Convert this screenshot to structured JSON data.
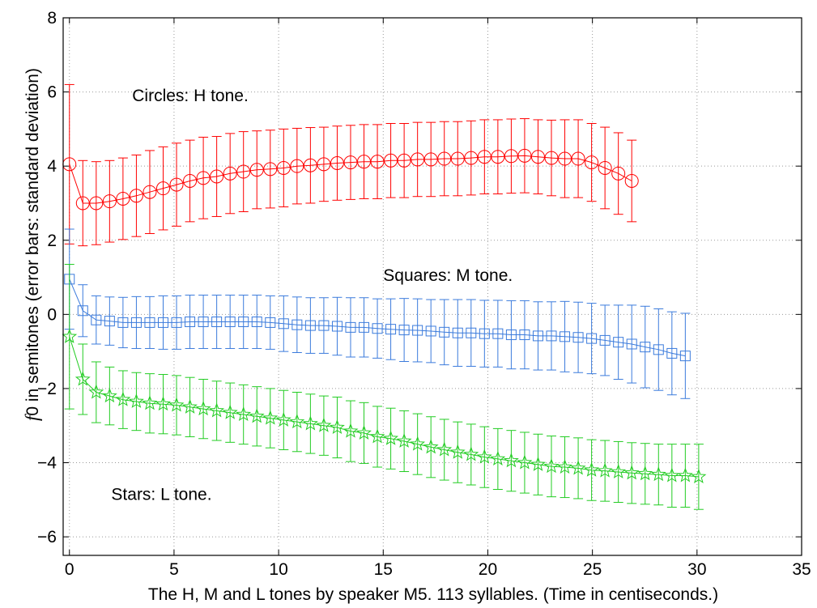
{
  "chart_data": {
    "type": "line",
    "title": "",
    "xlabel": "The H, M and L tones by speaker M5. 113 syllables. (Time in centiseconds.)",
    "ylabel_italic": "f",
    "ylabel": "0 in semitones (error bars: standard deviation)",
    "xlim": [
      -0.3,
      35
    ],
    "ylim": [
      -6.5,
      8
    ],
    "xticks": [
      0,
      5,
      10,
      15,
      20,
      25,
      30,
      35
    ],
    "yticks": [
      -6,
      -4,
      -2,
      0,
      2,
      4,
      6,
      8
    ],
    "grid": true,
    "annotations": [
      {
        "text": "Circles: H tone.",
        "x": 3.0,
        "y": 5.75
      },
      {
        "text": "Squares: M tone.",
        "x": 15.0,
        "y": 0.9
      },
      {
        "text": "Stars: L tone.",
        "x": 2.0,
        "y": -5.0
      }
    ],
    "series": [
      {
        "marker": "circle",
        "color": "#ff0000",
        "x": [
          0,
          0.64,
          1.28,
          1.92,
          2.56,
          3.2,
          3.84,
          4.48,
          5.12,
          5.76,
          6.4,
          7.04,
          7.68,
          8.32,
          8.96,
          9.6,
          10.24,
          10.88,
          11.52,
          12.16,
          12.8,
          13.44,
          14.08,
          14.72,
          15.36,
          16.0,
          16.64,
          17.28,
          17.92,
          18.56,
          19.2,
          19.84,
          20.48,
          21.12,
          21.76,
          22.4,
          23.04,
          23.68,
          24.32,
          24.96,
          25.6,
          26.24,
          26.88
        ],
        "y": [
          4.05,
          3.0,
          3.0,
          3.05,
          3.12,
          3.2,
          3.3,
          3.4,
          3.5,
          3.6,
          3.68,
          3.72,
          3.8,
          3.85,
          3.9,
          3.92,
          3.95,
          4.0,
          4.02,
          4.05,
          4.08,
          4.1,
          4.12,
          4.12,
          4.15,
          4.15,
          4.18,
          4.18,
          4.2,
          4.2,
          4.22,
          4.25,
          4.25,
          4.27,
          4.28,
          4.25,
          4.22,
          4.2,
          4.2,
          4.1,
          3.95,
          3.8,
          3.6
        ],
        "err": [
          2.15,
          1.15,
          1.12,
          1.1,
          1.1,
          1.1,
          1.12,
          1.12,
          1.12,
          1.1,
          1.1,
          1.08,
          1.08,
          1.08,
          1.05,
          1.05,
          1.05,
          1.02,
          1.02,
          1.0,
          1.0,
          1.0,
          1.0,
          1.0,
          1.0,
          1.0,
          1.0,
          1.0,
          1.0,
          1.0,
          1.0,
          1.0,
          1.0,
          1.0,
          1.0,
          1.0,
          1.02,
          1.05,
          1.05,
          1.05,
          1.1,
          1.1,
          1.1
        ]
      },
      {
        "marker": "square",
        "color": "#3b7bdc",
        "x": [
          0,
          0.64,
          1.28,
          1.92,
          2.56,
          3.2,
          3.84,
          4.48,
          5.12,
          5.76,
          6.4,
          7.04,
          7.68,
          8.32,
          8.96,
          9.6,
          10.24,
          10.88,
          11.52,
          12.16,
          12.8,
          13.44,
          14.08,
          14.72,
          15.36,
          16.0,
          16.64,
          17.28,
          17.92,
          18.56,
          19.2,
          19.84,
          20.48,
          21.12,
          21.76,
          22.4,
          23.04,
          23.68,
          24.32,
          24.96,
          25.6,
          26.24,
          26.88,
          27.52,
          28.16,
          28.8,
          29.44
        ],
        "y": [
          0.95,
          0.1,
          -0.15,
          -0.18,
          -0.22,
          -0.22,
          -0.22,
          -0.22,
          -0.22,
          -0.2,
          -0.2,
          -0.2,
          -0.2,
          -0.2,
          -0.2,
          -0.22,
          -0.25,
          -0.28,
          -0.3,
          -0.3,
          -0.32,
          -0.35,
          -0.35,
          -0.38,
          -0.4,
          -0.42,
          -0.43,
          -0.45,
          -0.48,
          -0.5,
          -0.5,
          -0.52,
          -0.52,
          -0.55,
          -0.55,
          -0.58,
          -0.58,
          -0.6,
          -0.62,
          -0.65,
          -0.7,
          -0.75,
          -0.8,
          -0.88,
          -0.95,
          -1.05,
          -1.12
        ],
        "err": [
          1.35,
          0.7,
          0.65,
          0.65,
          0.68,
          0.7,
          0.7,
          0.72,
          0.72,
          0.72,
          0.72,
          0.72,
          0.72,
          0.72,
          0.72,
          0.72,
          0.75,
          0.75,
          0.75,
          0.75,
          0.78,
          0.8,
          0.8,
          0.8,
          0.82,
          0.85,
          0.85,
          0.85,
          0.88,
          0.9,
          0.9,
          0.9,
          0.9,
          0.92,
          0.92,
          0.92,
          0.92,
          0.95,
          0.95,
          0.95,
          0.95,
          1.0,
          1.05,
          1.1,
          1.1,
          1.12,
          1.15
        ]
      },
      {
        "marker": "star",
        "color": "#22cc22",
        "x": [
          0,
          0.64,
          1.28,
          1.92,
          2.56,
          3.2,
          3.84,
          4.48,
          5.12,
          5.76,
          6.4,
          7.04,
          7.68,
          8.32,
          8.96,
          9.6,
          10.24,
          10.88,
          11.52,
          12.16,
          12.8,
          13.44,
          14.08,
          14.72,
          15.36,
          16.0,
          16.64,
          17.28,
          17.92,
          18.56,
          19.2,
          19.84,
          20.48,
          21.12,
          21.76,
          22.4,
          23.04,
          23.68,
          24.32,
          24.96,
          25.6,
          26.24,
          26.88,
          27.52,
          28.16,
          28.8,
          29.44,
          30.08
        ],
        "y": [
          -0.6,
          -1.75,
          -2.1,
          -2.2,
          -2.3,
          -2.35,
          -2.4,
          -2.42,
          -2.45,
          -2.5,
          -2.55,
          -2.6,
          -2.65,
          -2.7,
          -2.75,
          -2.8,
          -2.85,
          -2.9,
          -2.95,
          -3.0,
          -3.05,
          -3.15,
          -3.2,
          -3.3,
          -3.35,
          -3.42,
          -3.5,
          -3.58,
          -3.65,
          -3.72,
          -3.78,
          -3.85,
          -3.9,
          -3.95,
          -4.0,
          -4.05,
          -4.1,
          -4.12,
          -4.15,
          -4.2,
          -4.22,
          -4.25,
          -4.28,
          -4.3,
          -4.32,
          -4.35,
          -4.35,
          -4.38
        ],
        "err": [
          1.95,
          0.95,
          0.82,
          0.78,
          0.78,
          0.78,
          0.8,
          0.8,
          0.8,
          0.8,
          0.8,
          0.8,
          0.8,
          0.8,
          0.8,
          0.8,
          0.8,
          0.8,
          0.8,
          0.8,
          0.82,
          0.82,
          0.82,
          0.82,
          0.82,
          0.82,
          0.82,
          0.82,
          0.82,
          0.82,
          0.82,
          0.82,
          0.82,
          0.82,
          0.82,
          0.82,
          0.82,
          0.82,
          0.82,
          0.82,
          0.82,
          0.82,
          0.82,
          0.82,
          0.82,
          0.85,
          0.85,
          0.88
        ]
      }
    ]
  }
}
